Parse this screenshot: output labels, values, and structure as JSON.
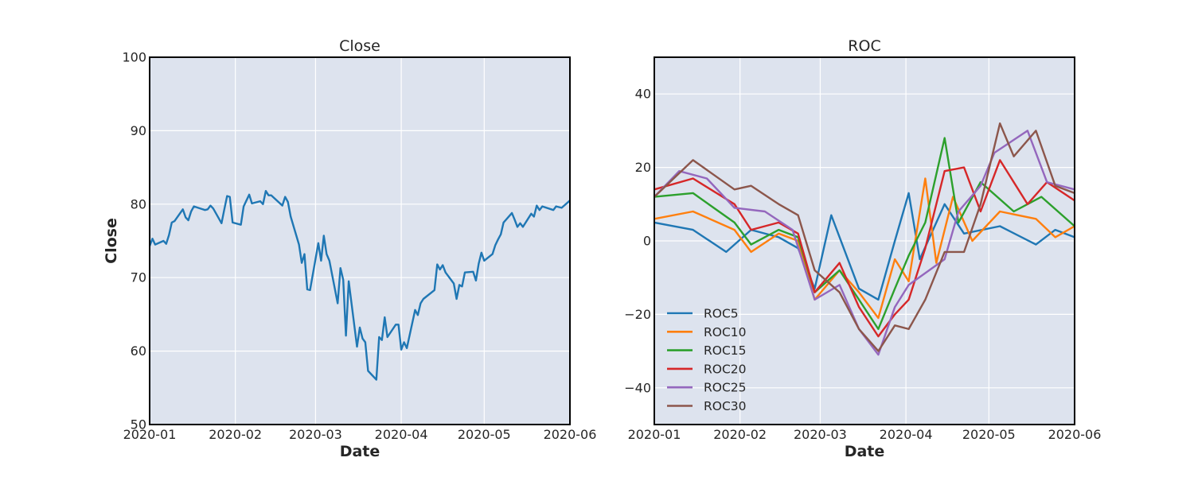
{
  "chart_data": [
    {
      "type": "line",
      "title": "Close",
      "xlabel": "Date",
      "ylabel": "Close",
      "xlim": [
        "2020-01-01",
        "2020-06-01"
      ],
      "ylim": [
        50,
        100
      ],
      "x_ticks": [
        "2020-01",
        "2020-02",
        "2020-03",
        "2020-04",
        "2020-05",
        "2020-06"
      ],
      "y_ticks": [
        50,
        60,
        70,
        80,
        90,
        100
      ],
      "grid": true,
      "series": [
        {
          "color": "#1f77b4",
          "points": [
            [
              "2020-01-01",
              74.3
            ],
            [
              "2020-01-02",
              75.3
            ],
            [
              "2020-01-03",
              74.5
            ],
            [
              "2020-01-06",
              75.0
            ],
            [
              "2020-01-07",
              74.6
            ],
            [
              "2020-01-08",
              75.8
            ],
            [
              "2020-01-09",
              77.5
            ],
            [
              "2020-01-10",
              77.7
            ],
            [
              "2020-01-13",
              79.3
            ],
            [
              "2020-01-14",
              78.2
            ],
            [
              "2020-01-15",
              77.8
            ],
            [
              "2020-01-16",
              79.0
            ],
            [
              "2020-01-17",
              79.7
            ],
            [
              "2020-01-21",
              79.2
            ],
            [
              "2020-01-22",
              79.3
            ],
            [
              "2020-01-23",
              79.8
            ],
            [
              "2020-01-24",
              79.4
            ],
            [
              "2020-01-27",
              77.4
            ],
            [
              "2020-01-28",
              79.3
            ],
            [
              "2020-01-29",
              81.1
            ],
            [
              "2020-01-30",
              81.0
            ],
            [
              "2020-01-31",
              77.5
            ],
            [
              "2020-02-03",
              77.2
            ],
            [
              "2020-02-04",
              79.7
            ],
            [
              "2020-02-05",
              80.5
            ],
            [
              "2020-02-06",
              81.3
            ],
            [
              "2020-02-07",
              80.1
            ],
            [
              "2020-02-10",
              80.4
            ],
            [
              "2020-02-11",
              80.0
            ],
            [
              "2020-02-12",
              81.8
            ],
            [
              "2020-02-13",
              81.2
            ],
            [
              "2020-02-14",
              81.2
            ],
            [
              "2020-02-18",
              79.8
            ],
            [
              "2020-02-19",
              81.0
            ],
            [
              "2020-02-20",
              80.3
            ],
            [
              "2020-02-21",
              78.3
            ],
            [
              "2020-02-24",
              74.5
            ],
            [
              "2020-02-25",
              72.0
            ],
            [
              "2020-02-26",
              73.2
            ],
            [
              "2020-02-27",
              68.4
            ],
            [
              "2020-02-28",
              68.3
            ],
            [
              "2020-03-02",
              74.7
            ],
            [
              "2020-03-03",
              72.3
            ],
            [
              "2020-03-04",
              75.7
            ],
            [
              "2020-03-05",
              73.2
            ],
            [
              "2020-03-06",
              72.3
            ],
            [
              "2020-03-09",
              66.5
            ],
            [
              "2020-03-10",
              71.3
            ],
            [
              "2020-03-11",
              69.7
            ],
            [
              "2020-03-12",
              62.1
            ],
            [
              "2020-03-13",
              69.5
            ],
            [
              "2020-03-16",
              60.6
            ],
            [
              "2020-03-17",
              63.2
            ],
            [
              "2020-03-18",
              61.7
            ],
            [
              "2020-03-19",
              61.2
            ],
            [
              "2020-03-20",
              57.3
            ],
            [
              "2020-03-23",
              56.1
            ],
            [
              "2020-03-24",
              61.9
            ],
            [
              "2020-03-25",
              61.5
            ],
            [
              "2020-03-26",
              64.6
            ],
            [
              "2020-03-27",
              61.9
            ],
            [
              "2020-03-30",
              63.6
            ],
            [
              "2020-03-31",
              63.6
            ],
            [
              "2020-04-01",
              60.2
            ],
            [
              "2020-04-02",
              61.2
            ],
            [
              "2020-04-03",
              60.4
            ],
            [
              "2020-04-06",
              65.6
            ],
            [
              "2020-04-07",
              64.9
            ],
            [
              "2020-04-08",
              66.5
            ],
            [
              "2020-04-09",
              67.1
            ],
            [
              "2020-04-13",
              68.3
            ],
            [
              "2020-04-14",
              71.8
            ],
            [
              "2020-04-15",
              71.1
            ],
            [
              "2020-04-16",
              71.7
            ],
            [
              "2020-04-17",
              70.7
            ],
            [
              "2020-04-20",
              69.2
            ],
            [
              "2020-04-21",
              67.1
            ],
            [
              "2020-04-22",
              69.0
            ],
            [
              "2020-04-23",
              68.8
            ],
            [
              "2020-04-24",
              70.7
            ],
            [
              "2020-04-27",
              70.8
            ],
            [
              "2020-04-28",
              69.6
            ],
            [
              "2020-04-29",
              71.9
            ],
            [
              "2020-04-30",
              73.4
            ],
            [
              "2020-05-01",
              72.3
            ],
            [
              "2020-05-04",
              73.2
            ],
            [
              "2020-05-05",
              74.4
            ],
            [
              "2020-05-06",
              75.2
            ],
            [
              "2020-05-07",
              75.9
            ],
            [
              "2020-05-08",
              77.5
            ],
            [
              "2020-05-11",
              78.8
            ],
            [
              "2020-05-12",
              77.9
            ],
            [
              "2020-05-13",
              76.9
            ],
            [
              "2020-05-14",
              77.4
            ],
            [
              "2020-05-15",
              76.9
            ],
            [
              "2020-05-18",
              78.7
            ],
            [
              "2020-05-19",
              78.3
            ],
            [
              "2020-05-20",
              79.8
            ],
            [
              "2020-05-21",
              79.2
            ],
            [
              "2020-05-22",
              79.7
            ],
            [
              "2020-05-26",
              79.2
            ],
            [
              "2020-05-27",
              79.7
            ],
            [
              "2020-05-28",
              79.6
            ],
            [
              "2020-05-29",
              79.5
            ],
            [
              "2020-06-01",
              80.5
            ]
          ]
        }
      ]
    },
    {
      "type": "line",
      "title": "ROC",
      "xlabel": "Date",
      "ylabel": "",
      "xlim": [
        "2020-01-01",
        "2020-06-01"
      ],
      "ylim": [
        -50,
        50
      ],
      "x_ticks": [
        "2020-01",
        "2020-02",
        "2020-03",
        "2020-04",
        "2020-05",
        "2020-06"
      ],
      "y_ticks": [
        -40,
        -20,
        0,
        20,
        40
      ],
      "grid": true,
      "legend_placement": "lower-left",
      "series": [
        {
          "name": "ROC5",
          "color": "#1f77b4",
          "points": [
            [
              "2020-01-01",
              5
            ],
            [
              "2020-01-15",
              3
            ],
            [
              "2020-01-27",
              -3
            ],
            [
              "2020-02-05",
              3
            ],
            [
              "2020-02-15",
              1
            ],
            [
              "2020-02-22",
              -2
            ],
            [
              "2020-02-28",
              -13
            ],
            [
              "2020-03-05",
              7
            ],
            [
              "2020-03-15",
              -13
            ],
            [
              "2020-03-22",
              -16
            ],
            [
              "2020-03-28",
              0
            ],
            [
              "2020-04-02",
              13
            ],
            [
              "2020-04-06",
              -5
            ],
            [
              "2020-04-15",
              10
            ],
            [
              "2020-04-22",
              2
            ],
            [
              "2020-05-05",
              4
            ],
            [
              "2020-05-18",
              -1
            ],
            [
              "2020-05-25",
              3
            ],
            [
              "2020-06-01",
              1
            ]
          ]
        },
        {
          "name": "ROC10",
          "color": "#ff7f0e",
          "points": [
            [
              "2020-01-01",
              6
            ],
            [
              "2020-01-15",
              8
            ],
            [
              "2020-01-30",
              3
            ],
            [
              "2020-02-05",
              -3
            ],
            [
              "2020-02-15",
              2
            ],
            [
              "2020-02-22",
              0
            ],
            [
              "2020-02-28",
              -16
            ],
            [
              "2020-03-08",
              -8
            ],
            [
              "2020-03-15",
              -14
            ],
            [
              "2020-03-22",
              -21
            ],
            [
              "2020-03-28",
              -5
            ],
            [
              "2020-04-02",
              -11
            ],
            [
              "2020-04-08",
              17
            ],
            [
              "2020-04-12",
              -6
            ],
            [
              "2020-04-18",
              12
            ],
            [
              "2020-04-25",
              0
            ],
            [
              "2020-05-05",
              8
            ],
            [
              "2020-05-18",
              6
            ],
            [
              "2020-05-25",
              1
            ],
            [
              "2020-06-01",
              4
            ]
          ]
        },
        {
          "name": "ROC15",
          "color": "#2ca02c",
          "points": [
            [
              "2020-01-01",
              12
            ],
            [
              "2020-01-15",
              13
            ],
            [
              "2020-01-30",
              5
            ],
            [
              "2020-02-05",
              -1
            ],
            [
              "2020-02-15",
              3
            ],
            [
              "2020-02-22",
              1
            ],
            [
              "2020-02-28",
              -14
            ],
            [
              "2020-03-08",
              -8
            ],
            [
              "2020-03-15",
              -16
            ],
            [
              "2020-03-22",
              -24
            ],
            [
              "2020-03-28",
              -13
            ],
            [
              "2020-04-02",
              -4
            ],
            [
              "2020-04-08",
              5
            ],
            [
              "2020-04-15",
              28
            ],
            [
              "2020-04-20",
              5
            ],
            [
              "2020-04-28",
              16
            ],
            [
              "2020-05-10",
              8
            ],
            [
              "2020-05-20",
              12
            ],
            [
              "2020-06-01",
              4
            ]
          ]
        },
        {
          "name": "ROC20",
          "color": "#d62728",
          "points": [
            [
              "2020-01-01",
              14
            ],
            [
              "2020-01-15",
              17
            ],
            [
              "2020-01-30",
              10
            ],
            [
              "2020-02-05",
              3
            ],
            [
              "2020-02-15",
              5
            ],
            [
              "2020-02-22",
              2
            ],
            [
              "2020-02-28",
              -14
            ],
            [
              "2020-03-08",
              -6
            ],
            [
              "2020-03-15",
              -18
            ],
            [
              "2020-03-22",
              -26
            ],
            [
              "2020-03-28",
              -20
            ],
            [
              "2020-04-02",
              -16
            ],
            [
              "2020-04-08",
              -2
            ],
            [
              "2020-04-15",
              19
            ],
            [
              "2020-04-22",
              20
            ],
            [
              "2020-04-28",
              8
            ],
            [
              "2020-05-05",
              22
            ],
            [
              "2020-05-15",
              10
            ],
            [
              "2020-05-22",
              16
            ],
            [
              "2020-06-01",
              11
            ]
          ]
        },
        {
          "name": "ROC25",
          "color": "#9467bd",
          "points": [
            [
              "2020-01-01",
              12
            ],
            [
              "2020-01-10",
              19
            ],
            [
              "2020-01-20",
              17
            ],
            [
              "2020-01-30",
              9
            ],
            [
              "2020-02-10",
              8
            ],
            [
              "2020-02-20",
              3
            ],
            [
              "2020-02-28",
              -16
            ],
            [
              "2020-03-08",
              -12
            ],
            [
              "2020-03-15",
              -24
            ],
            [
              "2020-03-22",
              -31
            ],
            [
              "2020-03-28",
              -18
            ],
            [
              "2020-04-02",
              -12
            ],
            [
              "2020-04-15",
              -5
            ],
            [
              "2020-04-20",
              8
            ],
            [
              "2020-04-28",
              15
            ],
            [
              "2020-05-03",
              24
            ],
            [
              "2020-05-15",
              30
            ],
            [
              "2020-05-22",
              16
            ],
            [
              "2020-06-01",
              14
            ]
          ]
        },
        {
          "name": "ROC30",
          "color": "#8c564b",
          "points": [
            [
              "2020-01-01",
              12
            ],
            [
              "2020-01-15",
              22
            ],
            [
              "2020-01-30",
              14
            ],
            [
              "2020-02-05",
              15
            ],
            [
              "2020-02-15",
              10
            ],
            [
              "2020-02-22",
              7
            ],
            [
              "2020-02-28",
              -8
            ],
            [
              "2020-03-08",
              -14
            ],
            [
              "2020-03-15",
              -24
            ],
            [
              "2020-03-22",
              -30
            ],
            [
              "2020-03-28",
              -23
            ],
            [
              "2020-04-02",
              -24
            ],
            [
              "2020-04-08",
              -16
            ],
            [
              "2020-04-15",
              -3
            ],
            [
              "2020-04-22",
              -3
            ],
            [
              "2020-04-28",
              10
            ],
            [
              "2020-05-05",
              32
            ],
            [
              "2020-05-10",
              23
            ],
            [
              "2020-05-18",
              30
            ],
            [
              "2020-05-25",
              15
            ],
            [
              "2020-06-01",
              13
            ]
          ]
        }
      ]
    }
  ]
}
